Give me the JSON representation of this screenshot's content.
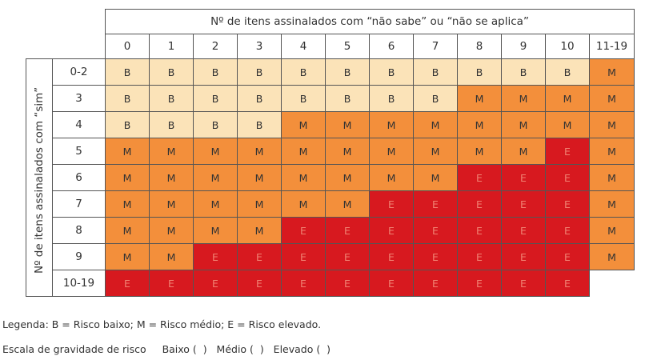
{
  "header_title": "Nº de itens assinalados com “não sabe” ou “não se aplica”",
  "side_title": "Nº de itens assinalados com “sim”",
  "columns": [
    "0",
    "1",
    "2",
    "3",
    "4",
    "5",
    "6",
    "7",
    "8",
    "9",
    "10",
    "11-19"
  ],
  "rows": [
    {
      "label": "0-2",
      "cells": [
        "B",
        "B",
        "B",
        "B",
        "B",
        "B",
        "B",
        "B",
        "B",
        "B",
        "B",
        "M"
      ]
    },
    {
      "label": "3",
      "cells": [
        "B",
        "B",
        "B",
        "B",
        "B",
        "B",
        "B",
        "B",
        "M",
        "M",
        "M",
        "M"
      ]
    },
    {
      "label": "4",
      "cells": [
        "B",
        "B",
        "B",
        "B",
        "M",
        "M",
        "M",
        "M",
        "M",
        "M",
        "M",
        "M"
      ]
    },
    {
      "label": "5",
      "cells": [
        "M",
        "M",
        "M",
        "M",
        "M",
        "M",
        "M",
        "M",
        "M",
        "M",
        "E",
        "M"
      ]
    },
    {
      "label": "6",
      "cells": [
        "M",
        "M",
        "M",
        "M",
        "M",
        "M",
        "M",
        "M",
        "E",
        "E",
        "E",
        "M"
      ]
    },
    {
      "label": "7",
      "cells": [
        "M",
        "M",
        "M",
        "M",
        "M",
        "M",
        "E",
        "E",
        "E",
        "E",
        "E",
        "M"
      ]
    },
    {
      "label": "8",
      "cells": [
        "M",
        "M",
        "M",
        "M",
        "E",
        "E",
        "E",
        "E",
        "E",
        "E",
        "E",
        "M"
      ]
    },
    {
      "label": "9",
      "cells": [
        "M",
        "M",
        "E",
        "E",
        "E",
        "E",
        "E",
        "E",
        "E",
        "E",
        "E",
        "M"
      ]
    },
    {
      "label": "10-19",
      "cells": [
        "E",
        "E",
        "E",
        "E",
        "E",
        "E",
        "E",
        "E",
        "E",
        "E",
        "E",
        ""
      ]
    }
  ],
  "colors": {
    "B": "#fbe3b8",
    "M": "#f38f3b",
    "E": "#d7191f"
  },
  "legend": "Legenda: B = Risco baixo; M = Risco médio; E = Risco elevado.",
  "scale": {
    "label": "Escala de gravidade de risco",
    "options": [
      "Baixo (  )",
      "Médio (  )",
      "Elevado (  )"
    ]
  }
}
